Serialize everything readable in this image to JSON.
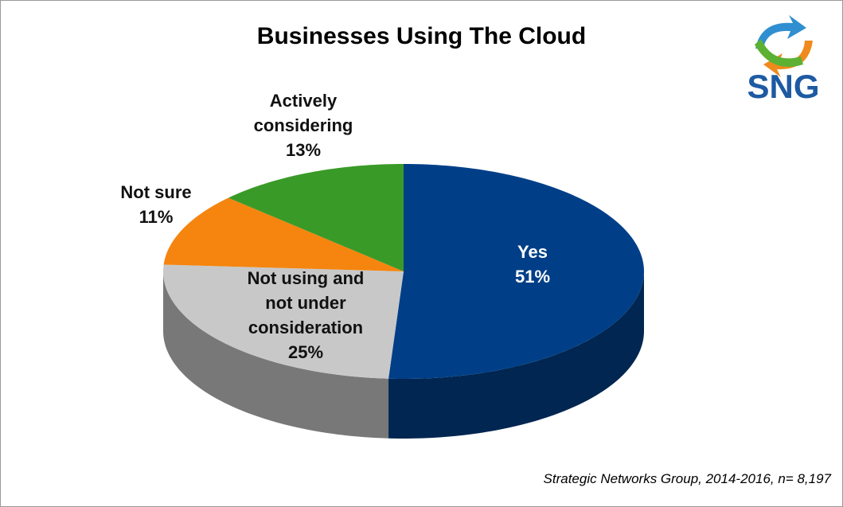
{
  "chart_data": {
    "type": "pie",
    "title": "Businesses Using The Cloud",
    "categories": [
      "Yes",
      "Not using and not under consideration",
      "Not sure",
      "Actively considering"
    ],
    "values": [
      51,
      25,
      11,
      13
    ],
    "value_labels": [
      "51%",
      "25%",
      "11%",
      "13%"
    ],
    "colors": [
      "#003f87",
      "#c8c8c8",
      "#f5850f",
      "#3a9a28"
    ],
    "source": "Strategic Networks Group, 2014-2016, n= 8,197"
  },
  "logo": {
    "text": "SNG"
  }
}
